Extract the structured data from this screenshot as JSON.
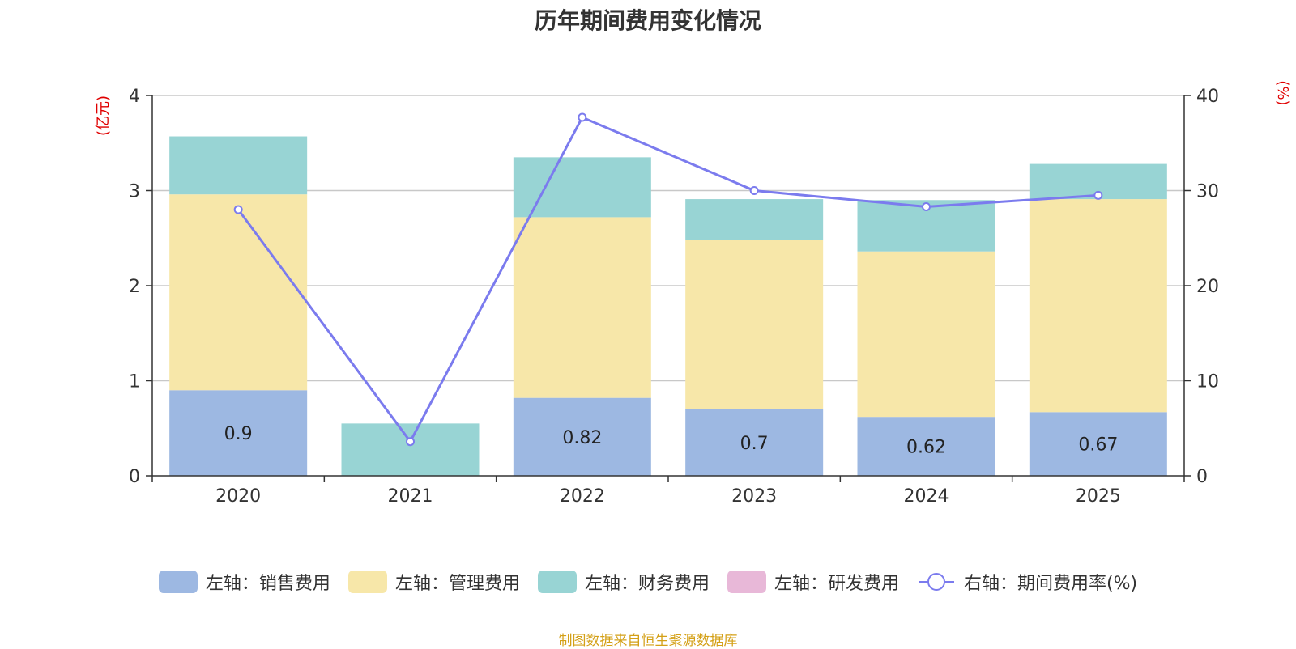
{
  "chart_data": {
    "type": "bar",
    "title": "历年期间费用变化情况",
    "categories": [
      "2020",
      "2021",
      "2022",
      "2023",
      "2024",
      "2025"
    ],
    "left_axis": {
      "unit_label": "(亿元)",
      "ylim": [
        0,
        4
      ],
      "ticks": [
        "0",
        "1",
        "2",
        "3",
        "4"
      ]
    },
    "right_axis": {
      "unit_label": "(%)",
      "ylim": [
        0,
        40
      ],
      "ticks": [
        "0",
        "10",
        "20",
        "30",
        "40"
      ]
    },
    "series": [
      {
        "name": "左轴：销售费用",
        "axis": "left",
        "color": "#9db8e2",
        "values": [
          0.9,
          0,
          0.82,
          0.7,
          0.62,
          0.67
        ],
        "labels": [
          "0.9",
          "",
          "0.82",
          "0.7",
          "0.62",
          "0.67"
        ]
      },
      {
        "name": "左轴：管理费用",
        "axis": "left",
        "color": "#f7e7a9",
        "values": [
          2.06,
          0,
          1.9,
          1.78,
          1.74,
          2.24
        ]
      },
      {
        "name": "左轴：财务费用",
        "axis": "left",
        "color": "#98d4d4",
        "values": [
          0.61,
          0.55,
          0.63,
          0.43,
          0.54,
          0.37
        ]
      },
      {
        "name": "左轴：研发费用",
        "axis": "left",
        "color": "#e8b8d8",
        "values": [
          0,
          0,
          0,
          0,
          0,
          0
        ]
      },
      {
        "name": "右轴：期间费用率(%)",
        "axis": "right",
        "type": "line",
        "color": "#7b7bee",
        "values": [
          28,
          3.6,
          37.7,
          30,
          28.3,
          29.5
        ]
      }
    ]
  },
  "source": "制图数据来自恒生聚源数据库"
}
